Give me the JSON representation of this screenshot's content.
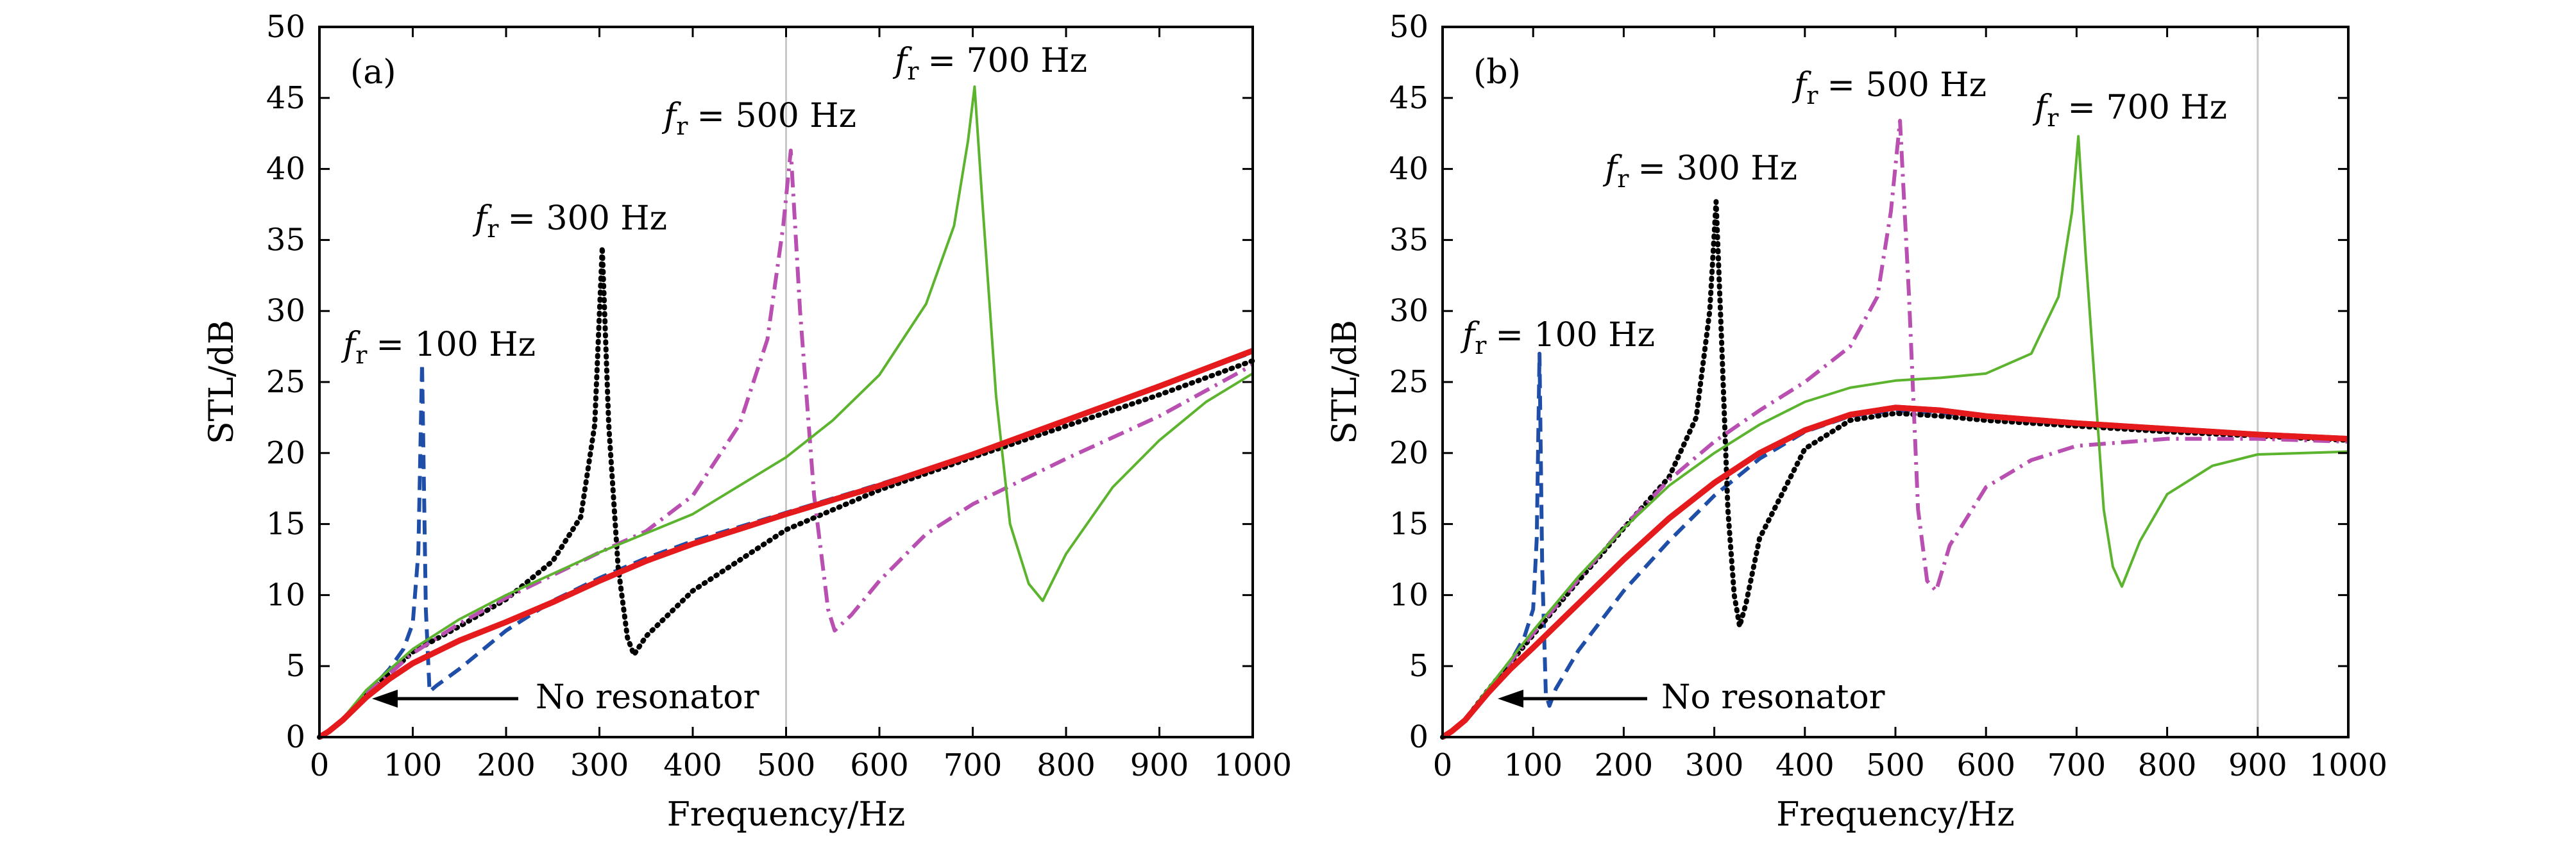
{
  "chart_data": [
    {
      "type": "line",
      "panel_label": "(a)",
      "xlabel": "Frequency/Hz",
      "ylabel": "STL/dB",
      "xlim": [
        0,
        1000
      ],
      "ylim": [
        0,
        50
      ],
      "xticks": [
        0,
        100,
        200,
        300,
        400,
        500,
        600,
        700,
        800,
        900,
        1000
      ],
      "yticks": [
        0,
        5,
        10,
        15,
        20,
        25,
        30,
        35,
        40,
        45,
        50
      ],
      "vline_x": 500,
      "arrow_text": "No resonator",
      "annotations": [
        {
          "symbol": "f",
          "sub": "r",
          "text": "= 100 Hz",
          "x": 20,
          "y": 27.5
        },
        {
          "symbol": "f",
          "sub": "r",
          "text": "= 300 Hz",
          "x": 180,
          "y": 35.8
        },
        {
          "symbol": "f",
          "sub": "r",
          "text": "= 500 Hz",
          "x": 385,
          "y": 42.2
        },
        {
          "symbol": "f",
          "sub": "r",
          "text": "= 700 Hz",
          "x": 635,
          "y": 47.5
        }
      ],
      "series": [
        {
          "name": "No resonator",
          "color": "#e41a1c",
          "style": "solid-thick",
          "x": [
            0,
            10,
            25,
            50,
            75,
            100,
            150,
            200,
            250,
            300,
            350,
            400,
            500,
            600,
            700,
            800,
            900,
            1000
          ],
          "y": [
            0,
            0.4,
            1.2,
            2.8,
            4.1,
            5.2,
            6.8,
            8.1,
            9.5,
            11,
            12.4,
            13.6,
            15.7,
            17.7,
            19.9,
            22.3,
            24.7,
            27.2
          ]
        },
        {
          "name": "fr = 100 Hz",
          "color": "#1f4ea8",
          "style": "dashed",
          "x": [
            0,
            10,
            25,
            50,
            75,
            90,
            100,
            106,
            110,
            114,
            118,
            125,
            150,
            200,
            250,
            300,
            350,
            400,
            500,
            600,
            700,
            800,
            900,
            1000
          ],
          "y": [
            0,
            0.4,
            1.2,
            3,
            4.8,
            6.2,
            8,
            13,
            26.3,
            9,
            3.2,
            3.6,
            4.8,
            7.5,
            9.6,
            11.2,
            12.6,
            13.8,
            15.8,
            17.8,
            19.9,
            22.3,
            24.7,
            27.1
          ]
        },
        {
          "name": "fr = 300 Hz",
          "color": "#000000",
          "style": "dotted",
          "x": [
            0,
            10,
            25,
            50,
            100,
            150,
            200,
            250,
            280,
            295,
            303,
            310,
            320,
            330,
            337,
            350,
            400,
            500,
            600,
            700,
            800,
            900,
            1000
          ],
          "y": [
            0,
            0.4,
            1.2,
            3,
            6,
            7.8,
            9.7,
            12.4,
            15.5,
            22,
            34.5,
            22,
            12,
            7,
            5.8,
            7.1,
            10.3,
            14.6,
            17.4,
            19.7,
            21.9,
            24.1,
            26.5
          ]
        },
        {
          "name": "fr = 500 Hz",
          "color": "#b84fb1",
          "style": "dashdot",
          "x": [
            0,
            10,
            25,
            50,
            100,
            150,
            200,
            250,
            300,
            350,
            400,
            450,
            480,
            497,
            505,
            515,
            530,
            545,
            552,
            570,
            600,
            650,
            700,
            800,
            900,
            1000
          ],
          "y": [
            0,
            0.4,
            1.2,
            3,
            5.9,
            8,
            9.8,
            11.4,
            13,
            14.5,
            17,
            22,
            28,
            36,
            41.3,
            30,
            17,
            9,
            7.5,
            8.6,
            11,
            14.3,
            16.4,
            19.6,
            22.6,
            26.2
          ]
        },
        {
          "name": "fr = 700 Hz",
          "color": "#5cb42e",
          "style": "solid-thin",
          "x": [
            0,
            10,
            25,
            50,
            100,
            150,
            200,
            250,
            300,
            400,
            500,
            550,
            600,
            650,
            680,
            695,
            702,
            710,
            725,
            740,
            760,
            775,
            800,
            850,
            900,
            950,
            1000
          ],
          "y": [
            0,
            0.4,
            1.3,
            3.3,
            6.2,
            8.3,
            10,
            11.5,
            13,
            15.7,
            19.7,
            22.3,
            25.5,
            30.5,
            36,
            42,
            45.8,
            38,
            24,
            15,
            10.8,
            9.6,
            12.9,
            17.6,
            20.9,
            23.6,
            25.6
          ]
        }
      ]
    },
    {
      "type": "line",
      "panel_label": "(b)",
      "xlabel": "Frequency/Hz",
      "ylabel": "STL/dB",
      "xlim": [
        0,
        1000
      ],
      "ylim": [
        0,
        50
      ],
      "xticks": [
        0,
        100,
        200,
        300,
        400,
        500,
        600,
        700,
        800,
        900,
        1000
      ],
      "yticks": [
        0,
        5,
        10,
        15,
        20,
        25,
        30,
        35,
        40,
        45,
        50
      ],
      "vline_x": 900,
      "arrow_text": "No resonator",
      "annotations": [
        {
          "symbol": "f",
          "sub": "r",
          "text": "= 100 Hz",
          "x": 20,
          "y": 28.2
        },
        {
          "symbol": "f",
          "sub": "r",
          "text": "= 300 Hz",
          "x": 183,
          "y": 39.5
        },
        {
          "symbol": "f",
          "sub": "r",
          "text": "= 500 Hz",
          "x": 385,
          "y": 45.5
        },
        {
          "symbol": "f",
          "sub": "r",
          "text": "= 700 Hz",
          "x": 655,
          "y": 42.5
        }
      ],
      "series": [
        {
          "name": "No resonator",
          "color": "#e41a1c",
          "style": "solid-thick",
          "x": [
            0,
            10,
            25,
            50,
            75,
            100,
            150,
            200,
            250,
            300,
            350,
            400,
            450,
            500,
            550,
            600,
            700,
            800,
            900,
            1000
          ],
          "y": [
            0,
            0.4,
            1.2,
            3.1,
            4.8,
            6.3,
            9.4,
            12.5,
            15.4,
            17.9,
            20,
            21.6,
            22.7,
            23.2,
            23,
            22.6,
            22.1,
            21.7,
            21.3,
            21
          ]
        },
        {
          "name": "fr = 100 Hz",
          "color": "#1f4ea8",
          "style": "dashed",
          "x": [
            0,
            10,
            25,
            50,
            75,
            90,
            100,
            104,
            107,
            110,
            114,
            118,
            125,
            150,
            200,
            250,
            300,
            350,
            400,
            450,
            500,
            600,
            700,
            800,
            900,
            1000
          ],
          "y": [
            0,
            0.4,
            1.2,
            3.2,
            5.3,
            7,
            9,
            14,
            27,
            12,
            3,
            2.2,
            3.4,
            6.1,
            10.3,
            13.8,
            17,
            19.6,
            21.5,
            22.6,
            23,
            22.6,
            22,
            21.6,
            21.3,
            21
          ]
        },
        {
          "name": "fr = 300 Hz",
          "color": "#000000",
          "style": "dotted",
          "x": [
            0,
            10,
            25,
            50,
            100,
            150,
            200,
            250,
            280,
            295,
            302,
            308,
            315,
            322,
            328,
            335,
            350,
            400,
            450,
            500,
            550,
            600,
            700,
            800,
            900,
            1000
          ],
          "y": [
            0,
            0.4,
            1.2,
            3.3,
            7.2,
            11,
            14.7,
            18.3,
            22.5,
            30,
            37.7,
            28,
            16,
            10,
            7.8,
            9.4,
            14,
            20.3,
            22.3,
            22.8,
            22.6,
            22.3,
            21.9,
            21.5,
            21.2,
            20.9
          ]
        },
        {
          "name": "fr = 500 Hz",
          "color": "#b84fb1",
          "style": "dashdot",
          "x": [
            0,
            10,
            25,
            50,
            100,
            150,
            200,
            250,
            300,
            350,
            400,
            450,
            480,
            495,
            505,
            515,
            525,
            535,
            545,
            560,
            600,
            650,
            700,
            800,
            900,
            1000
          ],
          "y": [
            0,
            0.4,
            1.2,
            3.3,
            7.3,
            11.1,
            14.8,
            18.1,
            20.8,
            23,
            25,
            27.5,
            31,
            37,
            43.4,
            31,
            16,
            11,
            10.3,
            13.5,
            17.6,
            19.5,
            20.5,
            21,
            21,
            20.8
          ]
        },
        {
          "name": "fr = 700 Hz",
          "color": "#5cb42e",
          "style": "solid-thin",
          "x": [
            0,
            10,
            25,
            50,
            100,
            150,
            200,
            250,
            300,
            350,
            400,
            450,
            500,
            550,
            600,
            650,
            680,
            695,
            702,
            710,
            720,
            730,
            740,
            750,
            770,
            800,
            850,
            900,
            1000
          ],
          "y": [
            0,
            0.4,
            1.3,
            3.4,
            7.5,
            11.3,
            14.7,
            17.7,
            20,
            22,
            23.6,
            24.6,
            25.1,
            25.3,
            25.6,
            27,
            31,
            37,
            42.3,
            34,
            25,
            16,
            12,
            10.6,
            13.8,
            17.1,
            19.1,
            19.9,
            20.1
          ]
        }
      ]
    }
  ]
}
